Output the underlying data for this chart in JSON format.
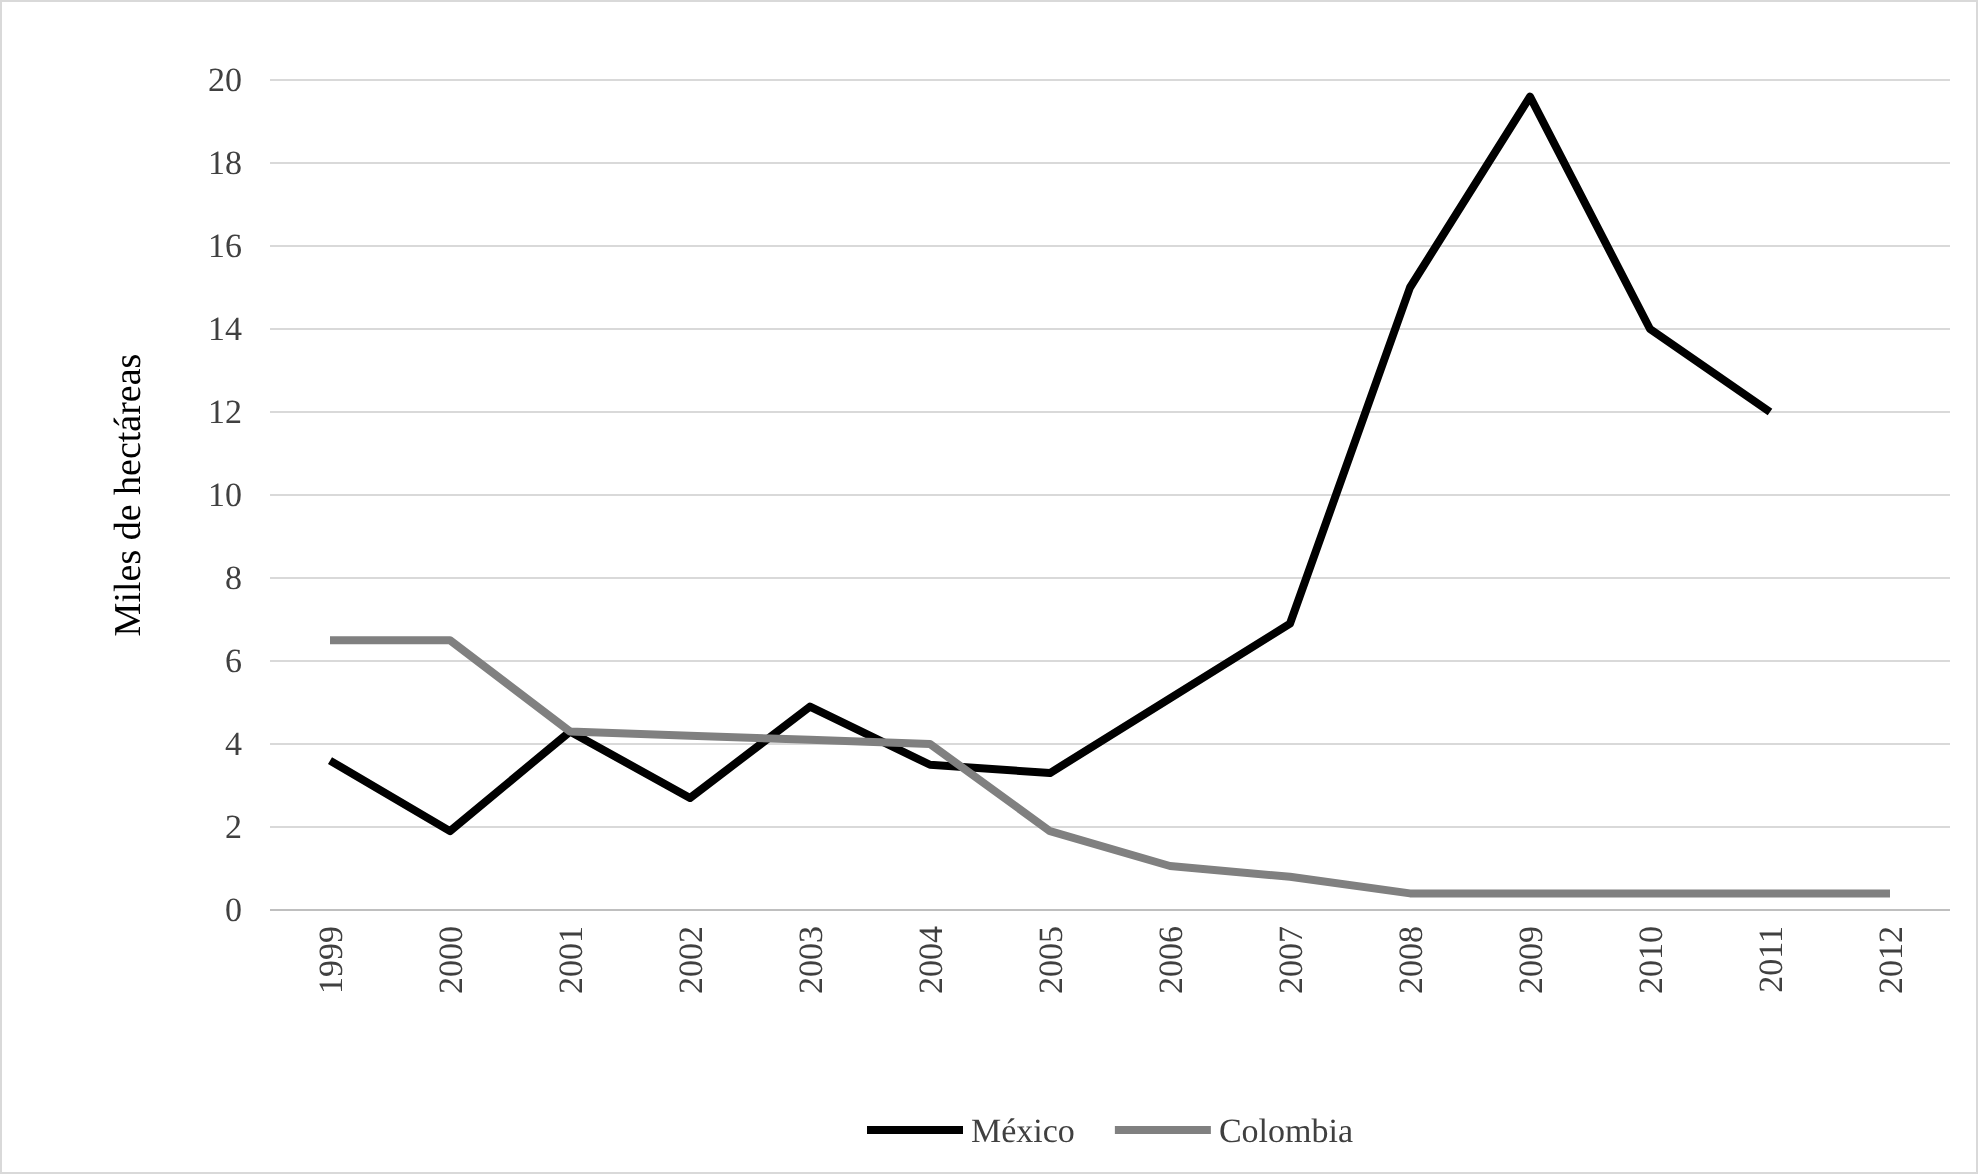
{
  "chart_data": {
    "type": "line",
    "ylabel": "Miles de hectáreas",
    "categories": [
      "1999",
      "2000",
      "2001",
      "2002",
      "2003",
      "2004",
      "2005",
      "2006",
      "2007",
      "2008",
      "2009",
      "2010",
      "2011",
      "2012"
    ],
    "series": [
      {
        "name": "México",
        "color": "#000000",
        "values": [
          3.6,
          1.9,
          4.3,
          2.7,
          4.9,
          3.5,
          3.3,
          5.1,
          6.9,
          15.0,
          19.6,
          14.0,
          12.0,
          null
        ]
      },
      {
        "name": "Colombia",
        "color": "#808080",
        "values": [
          6.5,
          6.5,
          4.3,
          4.2,
          4.1,
          4.0,
          1.9,
          1.06,
          0.8,
          0.4,
          0.4,
          0.4,
          0.4,
          0.4
        ]
      }
    ],
    "ylim": [
      0,
      20
    ],
    "yticks": [
      0,
      2,
      4,
      6,
      8,
      10,
      12,
      14,
      16,
      18,
      20
    ],
    "grid": "y",
    "legend": "bottom",
    "marker": "none",
    "line_style": "solid"
  }
}
